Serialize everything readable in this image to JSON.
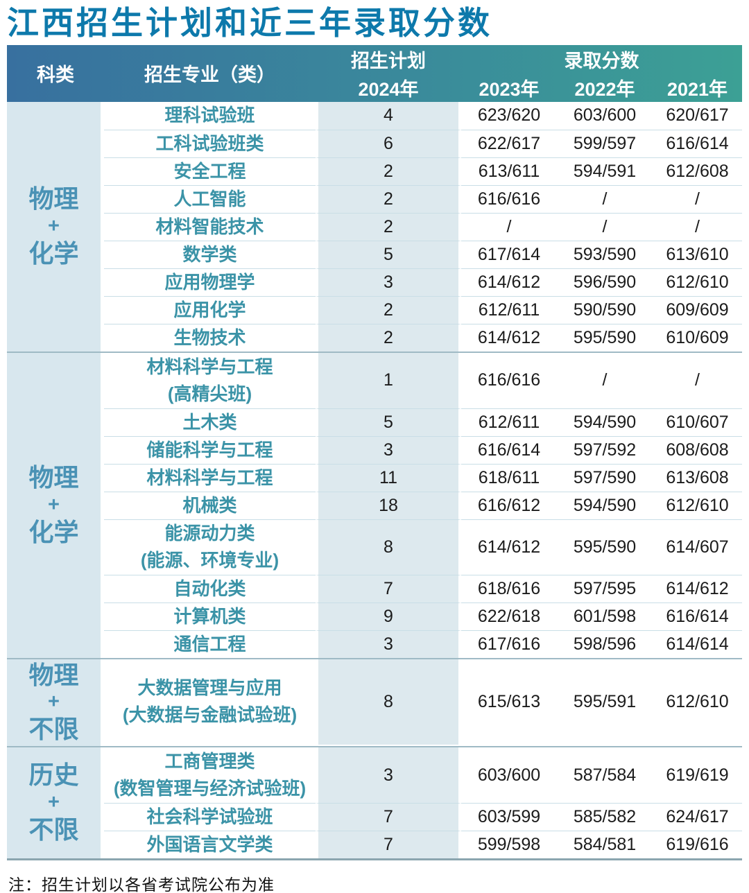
{
  "title": "江西招生计划和近三年录取分数",
  "note": "注：招生计划以各省考试院公布为准",
  "colors": {
    "title_text": "#0d79ab",
    "header_gradient_left": "#38709f",
    "header_gradient_right": "#3ca095",
    "header_text": "#ffffff",
    "category_bg": "#d8e7ee",
    "category_text": "#4a92b5",
    "major_text": "#3b93a7",
    "plan_col_bg": "#dde9ee",
    "score_text": "#1b1b1b",
    "row_divider": "#c9dee6",
    "group_divider": "#9fbac5",
    "table_bottom_border": "#8ba5af"
  },
  "header": {
    "col_category": "科类",
    "col_major": "招生专业（类）",
    "col_plan": "招生计划",
    "col_scores": "录取分数",
    "years": [
      "2024年",
      "2023年",
      "2022年",
      "2021年"
    ]
  },
  "groups": [
    {
      "category": [
        "物理",
        "+",
        "化学"
      ],
      "rows": [
        {
          "major": [
            "理科试验班"
          ],
          "plan": "4",
          "scores": [
            "623/620",
            "603/600",
            "620/617"
          ]
        },
        {
          "major": [
            "工科试验班类"
          ],
          "plan": "6",
          "scores": [
            "622/617",
            "599/597",
            "616/614"
          ]
        },
        {
          "major": [
            "安全工程"
          ],
          "plan": "2",
          "scores": [
            "613/611",
            "594/591",
            "612/608"
          ]
        },
        {
          "major": [
            "人工智能"
          ],
          "plan": "2",
          "scores": [
            "616/616",
            "/",
            "/"
          ]
        },
        {
          "major": [
            "材料智能技术"
          ],
          "plan": "2",
          "scores": [
            "/",
            "/",
            "/"
          ]
        },
        {
          "major": [
            "数学类"
          ],
          "plan": "5",
          "scores": [
            "617/614",
            "593/590",
            "613/610"
          ]
        },
        {
          "major": [
            "应用物理学"
          ],
          "plan": "3",
          "scores": [
            "614/612",
            "596/590",
            "612/610"
          ]
        },
        {
          "major": [
            "应用化学"
          ],
          "plan": "2",
          "scores": [
            "612/611",
            "590/590",
            "609/609"
          ]
        },
        {
          "major": [
            "生物技术"
          ],
          "plan": "2",
          "scores": [
            "614/612",
            "595/590",
            "610/609"
          ]
        }
      ]
    },
    {
      "category": [
        "物理",
        "+",
        "化学"
      ],
      "rows": [
        {
          "major": [
            "材料科学与工程",
            "(高精尖班)"
          ],
          "plan": "1",
          "scores": [
            "616/616",
            "/",
            "/"
          ]
        },
        {
          "major": [
            "土木类"
          ],
          "plan": "5",
          "scores": [
            "612/611",
            "594/590",
            "610/607"
          ]
        },
        {
          "major": [
            "储能科学与工程"
          ],
          "plan": "3",
          "scores": [
            "616/614",
            "597/592",
            "608/608"
          ]
        },
        {
          "major": [
            "材料科学与工程"
          ],
          "plan": "11",
          "scores": [
            "618/611",
            "597/590",
            "613/608"
          ]
        },
        {
          "major": [
            "机械类"
          ],
          "plan": "18",
          "scores": [
            "616/612",
            "594/590",
            "612/610"
          ]
        },
        {
          "major": [
            "能源动力类",
            "(能源、环境专业)"
          ],
          "plan": "8",
          "scores": [
            "614/612",
            "595/590",
            "614/607"
          ]
        },
        {
          "major": [
            "自动化类"
          ],
          "plan": "7",
          "scores": [
            "618/616",
            "597/595",
            "614/612"
          ]
        },
        {
          "major": [
            "计算机类"
          ],
          "plan": "9",
          "scores": [
            "622/618",
            "601/598",
            "616/614"
          ]
        },
        {
          "major": [
            "通信工程"
          ],
          "plan": "3",
          "scores": [
            "617/616",
            "598/596",
            "614/614"
          ]
        }
      ]
    },
    {
      "category": [
        "物理",
        "+",
        "不限"
      ],
      "rows": [
        {
          "major": [
            "大数据管理与应用",
            "(大数据与金融试验班)"
          ],
          "plan": "8",
          "scores": [
            "615/613",
            "595/591",
            "612/610"
          ]
        }
      ]
    },
    {
      "category": [
        "历史",
        "+",
        "不限"
      ],
      "rows": [
        {
          "major": [
            "工商管理类",
            "(数智管理与经济试验班)"
          ],
          "plan": "3",
          "scores": [
            "603/600",
            "587/584",
            "619/619"
          ]
        },
        {
          "major": [
            "社会科学试验班"
          ],
          "plan": "7",
          "scores": [
            "603/599",
            "585/582",
            "624/617"
          ]
        },
        {
          "major": [
            "外国语言文学类"
          ],
          "plan": "7",
          "scores": [
            "599/598",
            "584/581",
            "619/616"
          ]
        }
      ]
    }
  ]
}
